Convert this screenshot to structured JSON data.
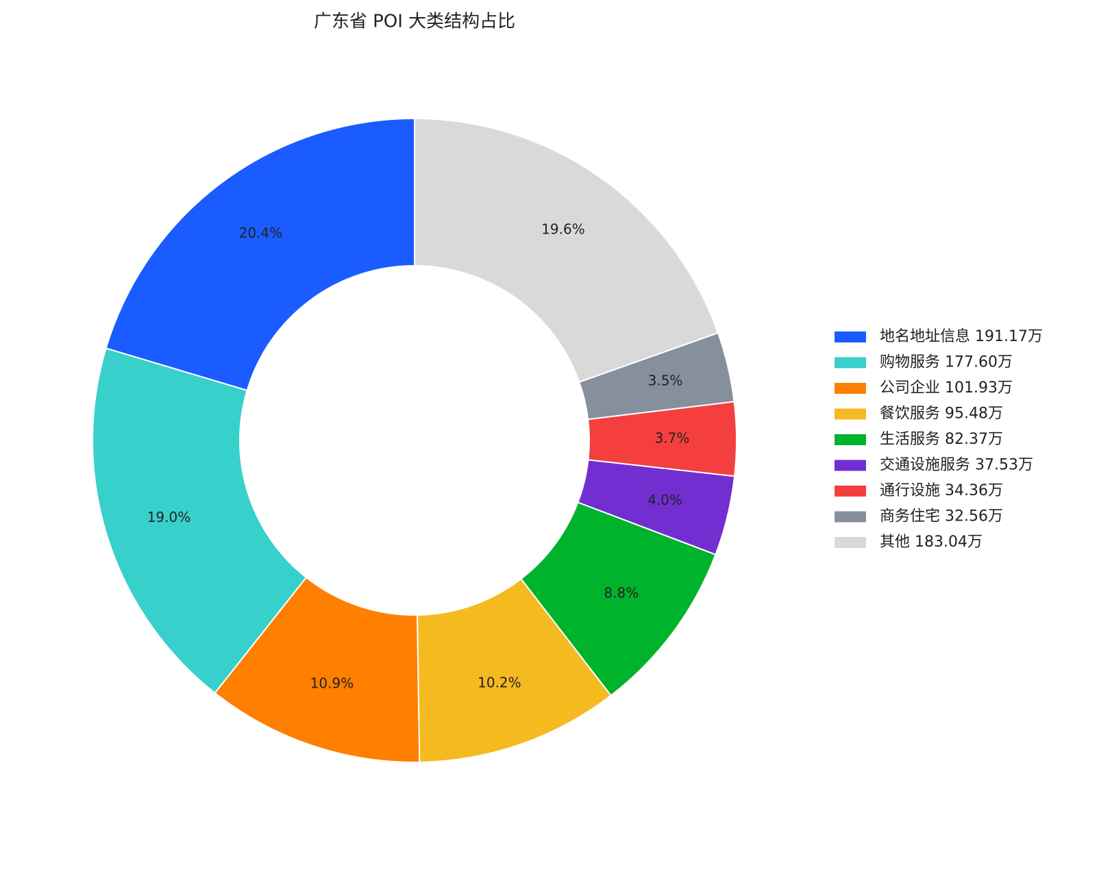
{
  "chart_data": {
    "type": "donut",
    "title": "广东省 POI 大类结构占比",
    "categories": [
      "地名地址信息 191.17万",
      "购物服务 177.60万",
      "公司企业 101.93万",
      "餐饮服务 95.48万",
      "生活服务 82.37万",
      "交通设施服务 37.53万",
      "通行设施 34.36万",
      "商务住宅 32.56万",
      "其他 183.04万"
    ],
    "values": [
      20.4,
      19.0,
      10.9,
      10.2,
      8.8,
      4.0,
      3.7,
      3.5,
      19.6
    ],
    "value_labels": [
      "20.4%",
      "19.0%",
      "10.9%",
      "10.2%",
      "8.8%",
      "4.0%",
      "3.7%",
      "3.5%",
      "19.6%"
    ],
    "colors": [
      "#1a5cff",
      "#38d0cb",
      "#ff7f00",
      "#f6ba21",
      "#00b32c",
      "#722ed1",
      "#f53f3f",
      "#86909c",
      "#d9d9d9"
    ],
    "legend": "right"
  }
}
